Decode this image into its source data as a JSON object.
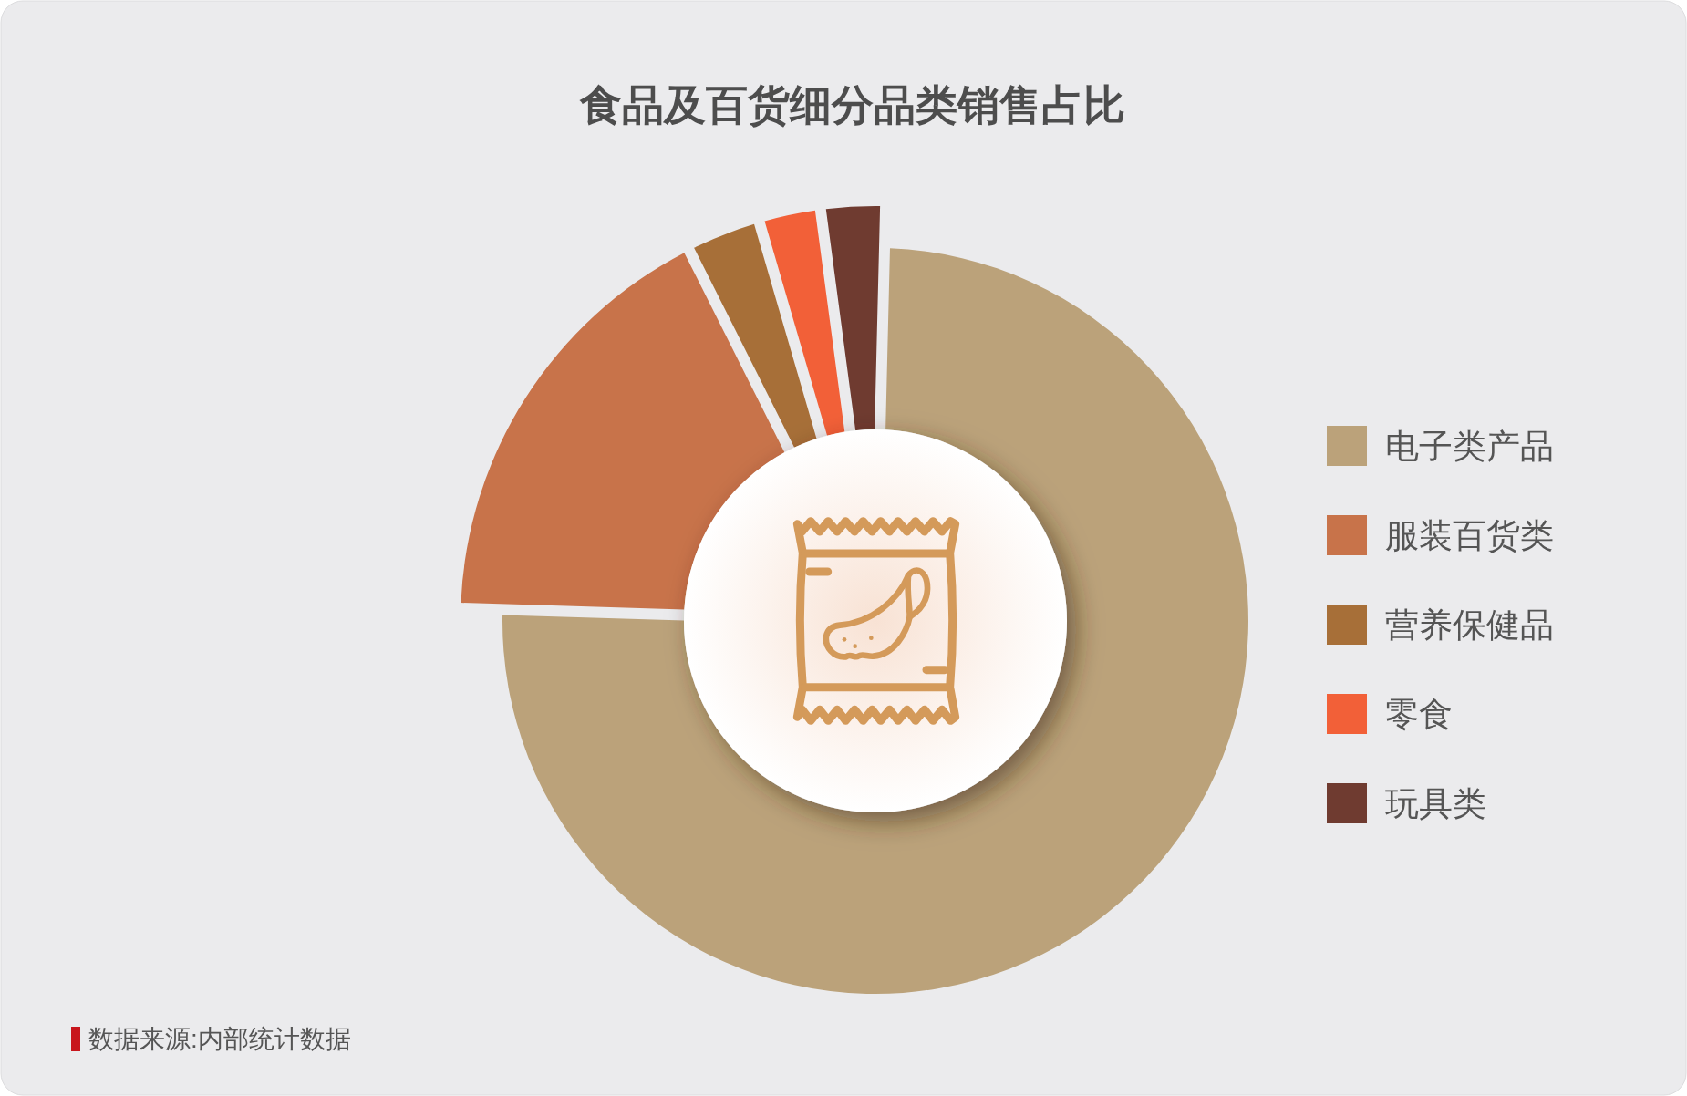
{
  "chart_data": {
    "type": "donut",
    "title": "食品及百货细分品类销售占比",
    "categories": [
      "电子类产品",
      "服装百货类",
      "营养保健品",
      "零食",
      "玩具类"
    ],
    "values": [
      75.1,
      17.1,
      2.9,
      2.4,
      2.5
    ],
    "colors": [
      "#BBA27A",
      "#C8734A",
      "#A76F38",
      "#F26038",
      "#6F3B30"
    ],
    "legend": "right",
    "annotations": [
      "数据来源:内部统计数据"
    ]
  }
}
